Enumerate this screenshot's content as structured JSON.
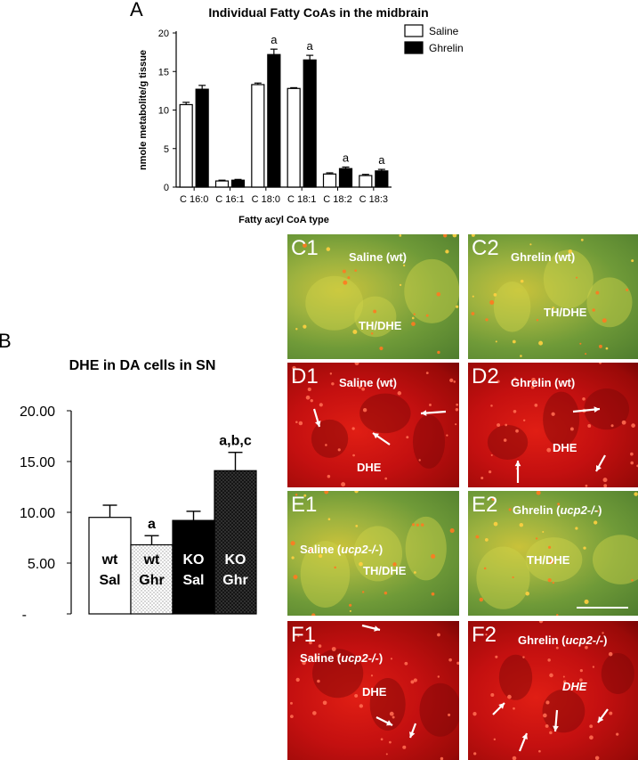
{
  "figure": {
    "panel_labels": {
      "a": "A",
      "b": "B"
    },
    "micrographs": [
      {
        "id": "C1",
        "letter": "C1",
        "caption": "Saline (wt)",
        "caption_italic": "",
        "caption_suffix": "",
        "sub": "TH/DHE",
        "type": "merge"
      },
      {
        "id": "C2",
        "letter": "C2",
        "caption": "Ghrelin (wt)",
        "caption_italic": "",
        "caption_suffix": "",
        "sub": "TH/DHE",
        "type": "merge"
      },
      {
        "id": "D1",
        "letter": "D1",
        "caption": "Saline (wt)",
        "caption_italic": "",
        "caption_suffix": "",
        "sub": "DHE",
        "type": "red"
      },
      {
        "id": "D2",
        "letter": "D2",
        "caption": "Ghrelin (wt)",
        "caption_italic": "",
        "caption_suffix": "",
        "sub": "DHE",
        "type": "red"
      },
      {
        "id": "E1",
        "letter": "E1",
        "caption": "Saline (",
        "caption_italic": "ucp2-/-",
        "caption_suffix": ")",
        "sub": "TH/DHE",
        "type": "merge"
      },
      {
        "id": "E2",
        "letter": "E2",
        "caption": "Ghrelin (",
        "caption_italic": "ucp2-/-",
        "caption_suffix": ")",
        "sub": "TH/DHE",
        "type": "merge"
      },
      {
        "id": "F1",
        "letter": "F1",
        "caption": "Saline (",
        "caption_italic": "ucp2-/-",
        "caption_suffix": ")",
        "sub": "DHE",
        "type": "red"
      },
      {
        "id": "F2",
        "letter": "F2",
        "caption": "Ghrelin (",
        "caption_italic": "ucp2-/-",
        "caption_suffix": ")",
        "sub": "DHE",
        "type": "red"
      }
    ],
    "colors": {
      "merge_green": "#8fb04a",
      "red_bg": "#c81010",
      "dhe_red": "#ff3020",
      "white": "#ffffff"
    }
  },
  "chart_data": [
    {
      "type": "bar",
      "title": "Individual Fatty CoAs in the midbrain",
      "xlabel": "Fatty acyl CoA type",
      "ylabel": "nmole metabolite/g tissue",
      "ylim": [
        0,
        20
      ],
      "yticks": [
        "0",
        "5",
        "10",
        "15",
        "20"
      ],
      "categories": [
        "C 16:0",
        "C 16:1",
        "C 18:0",
        "C 18:1",
        "C 18:2",
        "C 18:3"
      ],
      "series": [
        {
          "name": "Saline",
          "color": "#ffffff",
          "values": [
            10.7,
            0.8,
            13.3,
            12.8,
            1.7,
            1.5
          ],
          "errors": [
            0.3,
            0.1,
            0.2,
            0.1,
            0.15,
            0.15
          ]
        },
        {
          "name": "Ghrelin",
          "color": "#000000",
          "values": [
            12.7,
            0.9,
            17.2,
            16.5,
            2.4,
            2.1
          ],
          "errors": [
            0.5,
            0.1,
            0.7,
            0.6,
            0.2,
            0.2
          ]
        }
      ],
      "annotations": [
        "",
        "",
        "a",
        "a",
        "a",
        "a"
      ],
      "legend": "top-right"
    },
    {
      "type": "bar",
      "title": "DHE in DA cells in SN",
      "ylim": [
        0,
        20
      ],
      "yticks": [
        "-",
        "5.00",
        "10.00",
        "15.00",
        "20.00"
      ],
      "categories": [
        {
          "line1": "wt",
          "line2": "Sal"
        },
        {
          "line1": "wt",
          "line2": "Ghr"
        },
        {
          "line1": "KO",
          "line2": "Sal"
        },
        {
          "line1": "KO",
          "line2": "Ghr"
        }
      ],
      "values": [
        9.5,
        6.8,
        9.2,
        14.1
      ],
      "errors": [
        1.2,
        0.9,
        0.9,
        1.8
      ],
      "fills": [
        "white",
        "dotted",
        "black",
        "dark-dotted"
      ],
      "annotations": [
        "",
        "a",
        "",
        "a,b,c"
      ]
    }
  ]
}
